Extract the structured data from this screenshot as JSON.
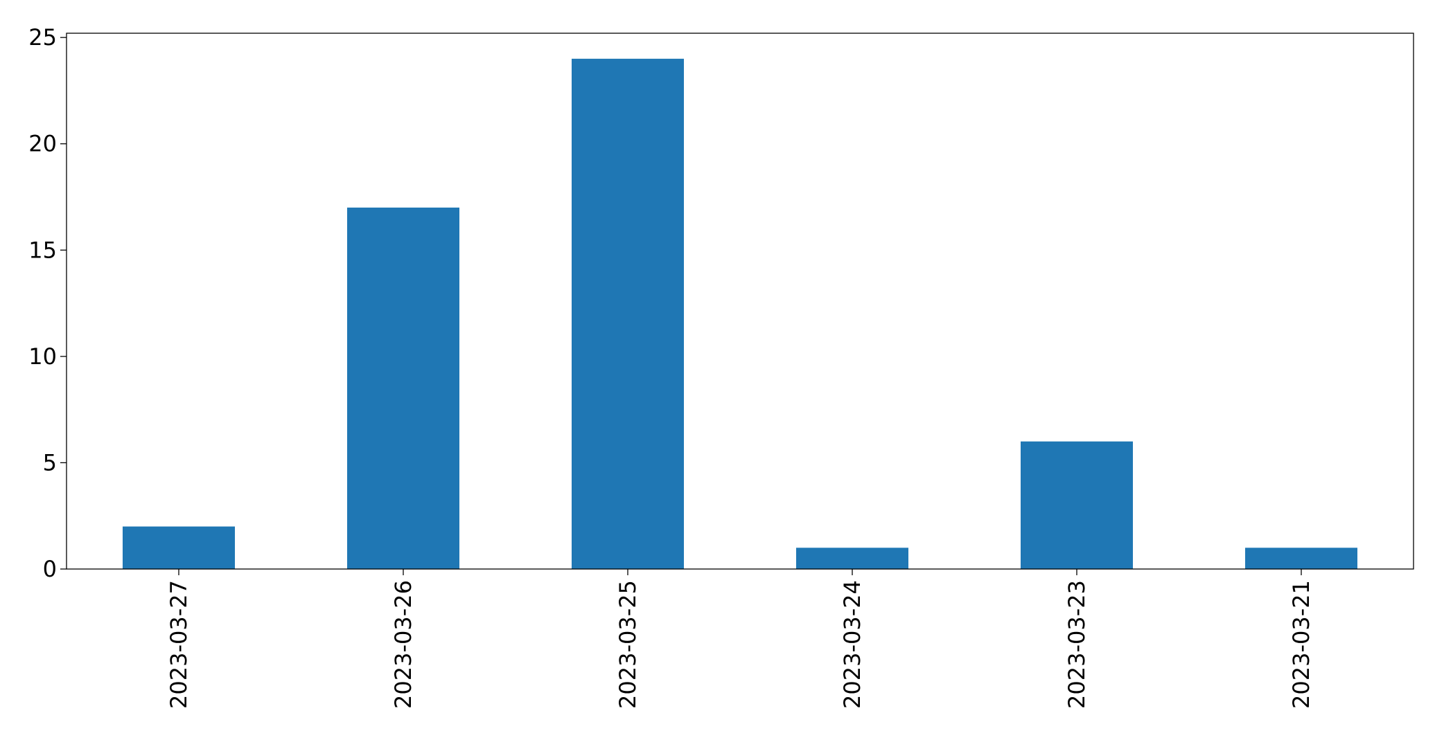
{
  "chart_data": {
    "type": "bar",
    "categories": [
      "2023-03-27",
      "2023-03-26",
      "2023-03-25",
      "2023-03-24",
      "2023-03-23",
      "2023-03-21"
    ],
    "values": [
      2,
      17,
      24,
      1,
      6,
      1
    ],
    "color": "#1f77b4",
    "ylim": [
      0,
      25.2
    ],
    "yticks": [
      0,
      5,
      10,
      15,
      20,
      25
    ],
    "grid": false
  }
}
